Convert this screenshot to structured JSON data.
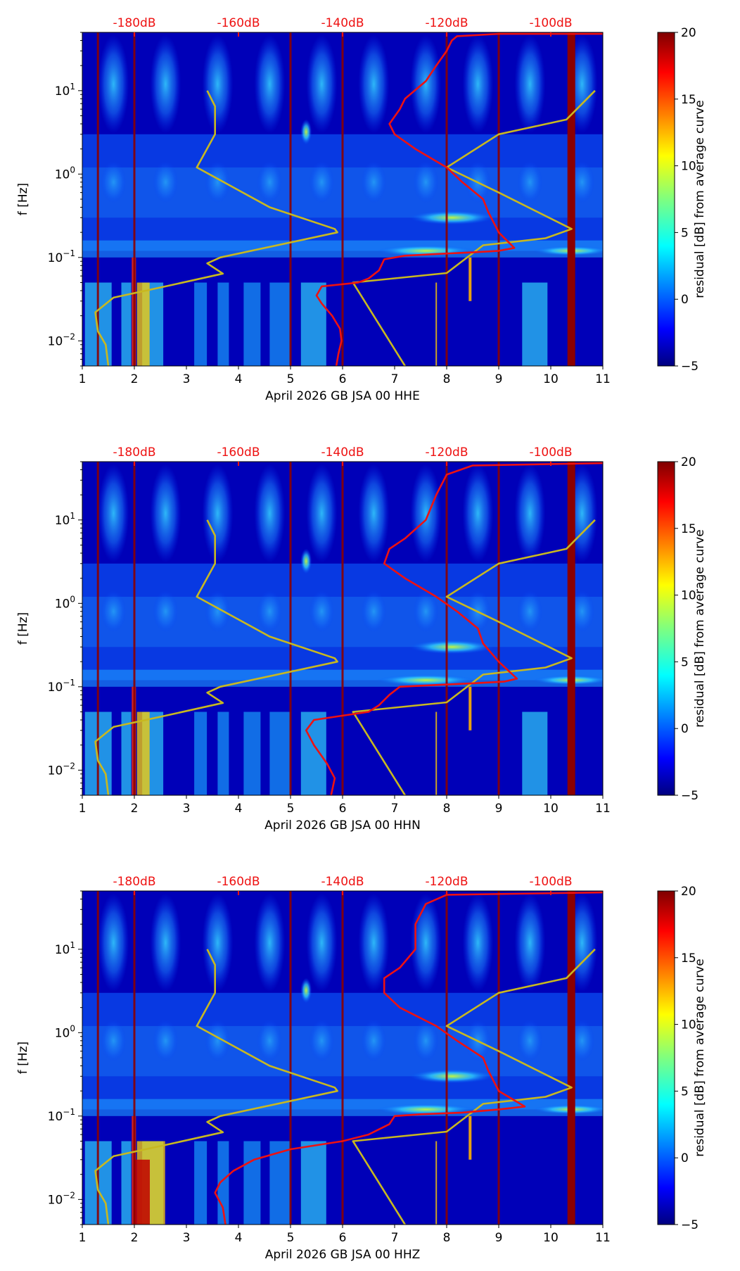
{
  "figure": {
    "title": "",
    "colorbar_ticks": [
      "20",
      "15",
      "10",
      "5",
      "0",
      "−5"
    ]
  },
  "chart_data": [
    {
      "type": "heatmap",
      "channel": "HHE",
      "xlabel": "April 2026 GB JSA 00 HHE",
      "ylabel": "f [Hz]",
      "xlim": [
        1,
        11
      ],
      "ylim": [
        0.005,
        50
      ],
      "y_scale": "log",
      "x_ticks": [
        "1",
        "2",
        "3",
        "4",
        "5",
        "6",
        "7",
        "8",
        "9",
        "10",
        "11"
      ],
      "y_ticks": [
        {
          "v": 0.01,
          "label": "10",
          "exp": "−2"
        },
        {
          "v": 0.1,
          "label": "10",
          "exp": "−1"
        },
        {
          "v": 1,
          "label": "10",
          "exp": "0"
        },
        {
          "v": 10,
          "label": "10",
          "exp": "1"
        }
      ],
      "top_axis_labels": [
        {
          "x": 2,
          "label": "-180dB"
        },
        {
          "x": 4,
          "label": "-160dB"
        },
        {
          "x": 6,
          "label": "-140dB"
        },
        {
          "x": 8,
          "label": "-120dB"
        },
        {
          "x": 10,
          "label": "-100dB"
        }
      ],
      "colorbar": {
        "label": "residual [dB] from average curve",
        "range": [
          -5,
          20
        ]
      },
      "red_curve": [
        [
          5.88,
          0.005
        ],
        [
          5.92,
          0.007
        ],
        [
          5.98,
          0.01
        ],
        [
          5.95,
          0.014
        ],
        [
          5.8,
          0.02
        ],
        [
          5.6,
          0.028
        ],
        [
          5.5,
          0.035
        ],
        [
          5.6,
          0.045
        ],
        [
          6.3,
          0.05
        ],
        [
          6.5,
          0.056
        ],
        [
          6.7,
          0.07
        ],
        [
          6.8,
          0.095
        ],
        [
          7.2,
          0.105
        ],
        [
          7.8,
          0.11
        ],
        [
          8.5,
          0.115
        ],
        [
          9.0,
          0.12
        ],
        [
          9.3,
          0.13
        ],
        [
          9.0,
          0.2
        ],
        [
          8.8,
          0.35
        ],
        [
          8.7,
          0.5
        ],
        [
          8.3,
          0.8
        ],
        [
          8.0,
          1.2
        ],
        [
          7.4,
          2.0
        ],
        [
          7.0,
          3.0
        ],
        [
          6.9,
          4.0
        ],
        [
          7.1,
          6.0
        ],
        [
          7.2,
          8.0
        ],
        [
          7.6,
          13
        ],
        [
          7.8,
          20
        ],
        [
          8.0,
          30
        ],
        [
          8.1,
          40
        ],
        [
          8.2,
          45
        ],
        [
          9.0,
          48
        ],
        [
          11.0,
          48
        ]
      ],
      "yellow_curve": [
        [
          1.5,
          0.005
        ],
        [
          1.45,
          0.009
        ],
        [
          1.3,
          0.013
        ],
        [
          1.25,
          0.022
        ],
        [
          1.6,
          0.033
        ],
        [
          2.6,
          0.045
        ],
        [
          3.7,
          0.064
        ],
        [
          3.4,
          0.085
        ],
        [
          3.65,
          0.1
        ],
        [
          5.9,
          0.2
        ],
        [
          5.85,
          0.22
        ],
        [
          4.6,
          0.4
        ],
        [
          3.8,
          0.75
        ],
        [
          3.2,
          1.2
        ],
        [
          3.55,
          3.0
        ],
        [
          3.55,
          6.5
        ],
        [
          3.4,
          10
        ]
      ],
      "yellow_curve_2": [
        [
          7.2,
          0.005
        ],
        [
          6.2,
          0.05
        ],
        [
          8.0,
          0.065
        ],
        [
          8.7,
          0.14
        ],
        [
          9.9,
          0.17
        ],
        [
          10.4,
          0.22
        ],
        [
          9.0,
          0.6
        ],
        [
          8.0,
          1.2
        ],
        [
          9.0,
          3.0
        ],
        [
          10.3,
          4.5
        ],
        [
          10.85,
          10
        ]
      ]
    },
    {
      "type": "heatmap",
      "channel": "HHN",
      "xlabel": "April 2026 GB JSA 00 HHN",
      "ylabel": "f [Hz]",
      "xlim": [
        1,
        11
      ],
      "ylim": [
        0.005,
        50
      ],
      "y_scale": "log",
      "x_ticks": [
        "1",
        "2",
        "3",
        "4",
        "5",
        "6",
        "7",
        "8",
        "9",
        "10",
        "11"
      ],
      "y_ticks": [
        {
          "v": 0.01,
          "label": "10",
          "exp": "−2"
        },
        {
          "v": 0.1,
          "label": "10",
          "exp": "−1"
        },
        {
          "v": 1,
          "label": "10",
          "exp": "0"
        },
        {
          "v": 10,
          "label": "10",
          "exp": "1"
        }
      ],
      "top_axis_labels": [
        {
          "x": 2,
          "label": "-180dB"
        },
        {
          "x": 4,
          "label": "-160dB"
        },
        {
          "x": 6,
          "label": "-140dB"
        },
        {
          "x": 8,
          "label": "-120dB"
        },
        {
          "x": 10,
          "label": "-100dB"
        }
      ],
      "colorbar": {
        "label": "residual [dB] from average curve",
        "range": [
          -5,
          20
        ]
      },
      "red_curve": [
        [
          5.78,
          0.005
        ],
        [
          5.85,
          0.008
        ],
        [
          5.7,
          0.012
        ],
        [
          5.45,
          0.02
        ],
        [
          5.3,
          0.03
        ],
        [
          5.45,
          0.04
        ],
        [
          6.0,
          0.045
        ],
        [
          6.5,
          0.05
        ],
        [
          6.7,
          0.06
        ],
        [
          6.9,
          0.08
        ],
        [
          7.1,
          0.1
        ],
        [
          7.8,
          0.105
        ],
        [
          8.5,
          0.11
        ],
        [
          9.1,
          0.115
        ],
        [
          9.35,
          0.125
        ],
        [
          9.0,
          0.2
        ],
        [
          8.7,
          0.33
        ],
        [
          8.6,
          0.5
        ],
        [
          8.2,
          0.8
        ],
        [
          7.8,
          1.2
        ],
        [
          7.2,
          2.0
        ],
        [
          6.8,
          3.0
        ],
        [
          6.9,
          4.5
        ],
        [
          7.2,
          6.0
        ],
        [
          7.6,
          10
        ],
        [
          7.8,
          20
        ],
        [
          8.0,
          35
        ],
        [
          8.5,
          45
        ],
        [
          11.0,
          48
        ]
      ],
      "yellow_curve": [
        [
          1.5,
          0.005
        ],
        [
          1.45,
          0.009
        ],
        [
          1.3,
          0.013
        ],
        [
          1.25,
          0.022
        ],
        [
          1.6,
          0.033
        ],
        [
          2.6,
          0.045
        ],
        [
          3.7,
          0.064
        ],
        [
          3.4,
          0.085
        ],
        [
          3.65,
          0.1
        ],
        [
          5.9,
          0.2
        ],
        [
          5.85,
          0.22
        ],
        [
          4.6,
          0.4
        ],
        [
          3.8,
          0.75
        ],
        [
          3.2,
          1.2
        ],
        [
          3.55,
          3.0
        ],
        [
          3.55,
          6.5
        ],
        [
          3.4,
          10
        ]
      ],
      "yellow_curve_2": [
        [
          7.2,
          0.005
        ],
        [
          6.2,
          0.05
        ],
        [
          8.0,
          0.065
        ],
        [
          8.7,
          0.14
        ],
        [
          9.9,
          0.17
        ],
        [
          10.4,
          0.22
        ],
        [
          9.0,
          0.6
        ],
        [
          8.0,
          1.2
        ],
        [
          9.0,
          3.0
        ],
        [
          10.3,
          4.5
        ],
        [
          10.85,
          10
        ]
      ]
    },
    {
      "type": "heatmap",
      "channel": "HHZ",
      "xlabel": "April 2026 GB JSA 00 HHZ",
      "ylabel": "f [Hz]",
      "xlim": [
        1,
        11
      ],
      "ylim": [
        0.005,
        50
      ],
      "y_scale": "log",
      "x_ticks": [
        "1",
        "2",
        "3",
        "4",
        "5",
        "6",
        "7",
        "8",
        "9",
        "10",
        "11"
      ],
      "y_ticks": [
        {
          "v": 0.01,
          "label": "10",
          "exp": "−2"
        },
        {
          "v": 0.1,
          "label": "10",
          "exp": "−1"
        },
        {
          "v": 1,
          "label": "10",
          "exp": "0"
        },
        {
          "v": 10,
          "label": "10",
          "exp": "1"
        }
      ],
      "top_axis_labels": [
        {
          "x": 2,
          "label": "-180dB"
        },
        {
          "x": 4,
          "label": "-160dB"
        },
        {
          "x": 6,
          "label": "-140dB"
        },
        {
          "x": 8,
          "label": "-120dB"
        },
        {
          "x": 10,
          "label": "-100dB"
        }
      ],
      "colorbar": {
        "label": "residual [dB] from average curve",
        "range": [
          -5,
          20
        ]
      },
      "red_curve": [
        [
          3.75,
          0.005
        ],
        [
          3.7,
          0.008
        ],
        [
          3.55,
          0.012
        ],
        [
          3.65,
          0.016
        ],
        [
          3.9,
          0.022
        ],
        [
          4.3,
          0.03
        ],
        [
          5.0,
          0.04
        ],
        [
          6.0,
          0.05
        ],
        [
          6.5,
          0.06
        ],
        [
          6.9,
          0.08
        ],
        [
          7.0,
          0.1
        ],
        [
          7.5,
          0.105
        ],
        [
          8.3,
          0.11
        ],
        [
          9.0,
          0.12
        ],
        [
          9.5,
          0.13
        ],
        [
          9.0,
          0.2
        ],
        [
          8.8,
          0.35
        ],
        [
          8.7,
          0.5
        ],
        [
          8.2,
          0.8
        ],
        [
          7.8,
          1.2
        ],
        [
          7.1,
          2.0
        ],
        [
          6.8,
          3.0
        ],
        [
          6.8,
          4.5
        ],
        [
          7.1,
          6.0
        ],
        [
          7.4,
          10
        ],
        [
          7.4,
          20
        ],
        [
          7.6,
          35
        ],
        [
          8.0,
          45
        ],
        [
          11.0,
          48
        ]
      ],
      "yellow_curve": [
        [
          1.5,
          0.005
        ],
        [
          1.45,
          0.009
        ],
        [
          1.3,
          0.013
        ],
        [
          1.25,
          0.022
        ],
        [
          1.6,
          0.033
        ],
        [
          2.6,
          0.045
        ],
        [
          3.7,
          0.064
        ],
        [
          3.4,
          0.085
        ],
        [
          3.65,
          0.1
        ],
        [
          5.9,
          0.2
        ],
        [
          5.85,
          0.22
        ],
        [
          4.6,
          0.4
        ],
        [
          3.8,
          0.75
        ],
        [
          3.2,
          1.2
        ],
        [
          3.55,
          3.0
        ],
        [
          3.55,
          6.5
        ],
        [
          3.4,
          10
        ]
      ],
      "yellow_curve_2": [
        [
          7.2,
          0.005
        ],
        [
          6.2,
          0.05
        ],
        [
          8.0,
          0.065
        ],
        [
          8.7,
          0.14
        ],
        [
          9.9,
          0.17
        ],
        [
          10.4,
          0.22
        ],
        [
          9.0,
          0.6
        ],
        [
          8.0,
          1.2
        ],
        [
          9.0,
          3.0
        ],
        [
          10.3,
          4.5
        ],
        [
          10.85,
          10
        ]
      ]
    }
  ]
}
